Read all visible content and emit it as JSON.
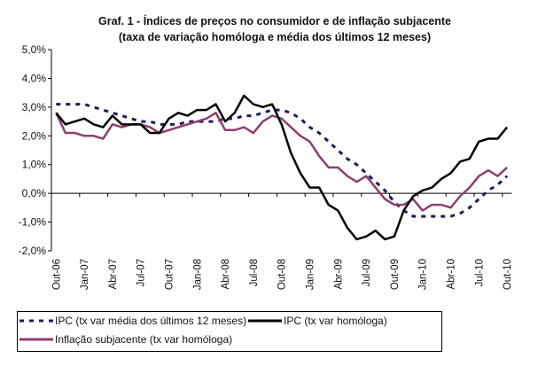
{
  "chart_data": {
    "type": "line",
    "title": "Graf. 1 - Índices de preços no consumidor e de inflação subjacente",
    "subtitle": "(taxa de variação homóloga e média dos últimos 12 meses)",
    "xlabel": "",
    "ylabel": "",
    "ylim": [
      -2.0,
      5.0
    ],
    "y_ticks": [
      "5,0%",
      "4,0%",
      "3,0%",
      "2,0%",
      "1,0%",
      "0,0%",
      "-1,0%",
      "-2,0%"
    ],
    "y_tick_values": [
      5,
      4,
      3,
      2,
      1,
      0,
      -1,
      -2
    ],
    "categories": [
      "Out-06",
      "Nov-06",
      "Dez-06",
      "Jan-07",
      "Fev-07",
      "Mar-07",
      "Abr-07",
      "Mai-07",
      "Jun-07",
      "Jul-07",
      "Ago-07",
      "Set-07",
      "Out-07",
      "Nov-07",
      "Dez-07",
      "Jan-08",
      "Fev-08",
      "Mar-08",
      "Abr-08",
      "Mai-08",
      "Jun-08",
      "Jul-08",
      "Ago-08",
      "Set-08",
      "Out-08",
      "Nov-08",
      "Dez-08",
      "Jan-09",
      "Fev-09",
      "Mar-09",
      "Abr-09",
      "Mai-09",
      "Jun-09",
      "Jul-09",
      "Ago-09",
      "Set-09",
      "Out-09",
      "Nov-09",
      "Dez-09",
      "Jan-10",
      "Fev-10",
      "Mar-10",
      "Abr-10",
      "Mai-10",
      "Jun-10",
      "Jul-10",
      "Ago-10",
      "Set-10",
      "Out-10"
    ],
    "x_tick_labels": [
      "Out-06",
      "Jan-07",
      "Abr-07",
      "Jul-07",
      "Out-07",
      "Jan-08",
      "Abr-08",
      "Jul-08",
      "Out-08",
      "Jan-09",
      "Abr-09",
      "Jul-09",
      "Out-09",
      "Jan-10",
      "Abr-10",
      "Jul-10",
      "Out-10"
    ],
    "grid": false,
    "legend_position": "bottom",
    "series": [
      {
        "name": "IPC (tx var média dos últimos 12 meses)",
        "color": "#1c1c5c",
        "style": "dashed",
        "values": [
          3.1,
          3.1,
          3.1,
          3.1,
          3.0,
          2.9,
          2.8,
          2.7,
          2.6,
          2.5,
          2.5,
          2.4,
          2.4,
          2.4,
          2.5,
          2.5,
          2.5,
          2.5,
          2.6,
          2.6,
          2.7,
          2.7,
          2.8,
          2.9,
          2.9,
          2.8,
          2.6,
          2.3,
          2.1,
          1.8,
          1.5,
          1.2,
          1.0,
          0.7,
          0.4,
          0.1,
          -0.3,
          -0.6,
          -0.8,
          -0.8,
          -0.8,
          -0.8,
          -0.8,
          -0.7,
          -0.5,
          -0.2,
          0.1,
          0.3,
          0.6
        ]
      },
      {
        "name": "IPC (tx var homóloga)",
        "color": "#000000",
        "style": "solid",
        "values": [
          2.8,
          2.4,
          2.5,
          2.6,
          2.4,
          2.3,
          2.7,
          2.4,
          2.4,
          2.4,
          2.1,
          2.1,
          2.6,
          2.8,
          2.7,
          2.9,
          2.9,
          3.1,
          2.5,
          2.8,
          3.4,
          3.1,
          3.0,
          3.1,
          2.4,
          1.4,
          0.7,
          0.2,
          0.2,
          -0.4,
          -0.6,
          -1.2,
          -1.6,
          -1.5,
          -1.3,
          -1.6,
          -1.5,
          -0.6,
          -0.1,
          0.1,
          0.2,
          0.5,
          0.7,
          1.1,
          1.2,
          1.8,
          1.9,
          1.9,
          2.3
        ]
      },
      {
        "name": "Inflação subjacente (tx var homóloga)",
        "color": "#8e3f6e",
        "style": "solid",
        "values": [
          2.8,
          2.1,
          2.1,
          2.0,
          2.0,
          1.9,
          2.4,
          2.3,
          2.4,
          2.4,
          2.3,
          2.1,
          2.2,
          2.3,
          2.4,
          2.5,
          2.6,
          2.8,
          2.2,
          2.2,
          2.3,
          2.1,
          2.5,
          2.7,
          2.6,
          2.3,
          2.0,
          1.8,
          1.3,
          0.9,
          0.9,
          0.6,
          0.4,
          0.6,
          0.2,
          -0.2,
          -0.4,
          -0.4,
          -0.2,
          -0.6,
          -0.4,
          -0.4,
          -0.5,
          -0.1,
          0.2,
          0.6,
          0.8,
          0.6,
          0.9
        ]
      }
    ]
  }
}
